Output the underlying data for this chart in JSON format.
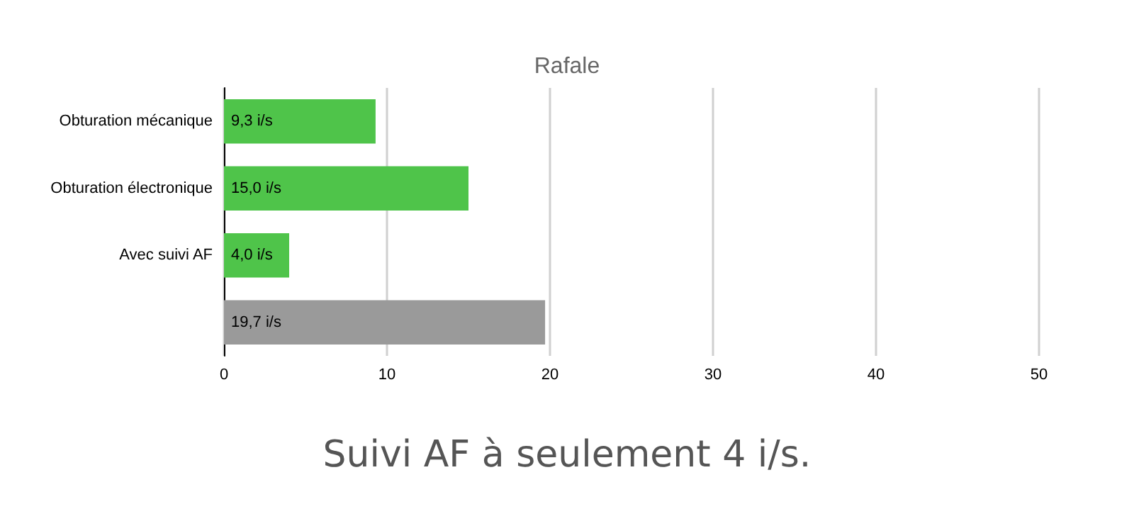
{
  "chart_data": {
    "type": "bar",
    "orientation": "horizontal",
    "title": "Rafale",
    "categories": [
      "Obturation mécanique",
      "Obturation électronique",
      "Avec suivi AF",
      null
    ],
    "values": [
      9.3,
      15.0,
      4.0,
      19.7
    ],
    "colors": [
      "#4fc44a",
      "#4fc44a",
      "#4fc44a",
      "#9a9a9a"
    ],
    "value_labels": [
      "9,3 i/s",
      "15,0 i/s",
      "4,0 i/s",
      "19,7 i/s"
    ],
    "xlim": [
      0,
      50
    ],
    "xticks": [
      0,
      10,
      20,
      30,
      40,
      50
    ],
    "grid": "x",
    "annotations": [
      "Suivi AF à seulement 4 i/s."
    ]
  }
}
